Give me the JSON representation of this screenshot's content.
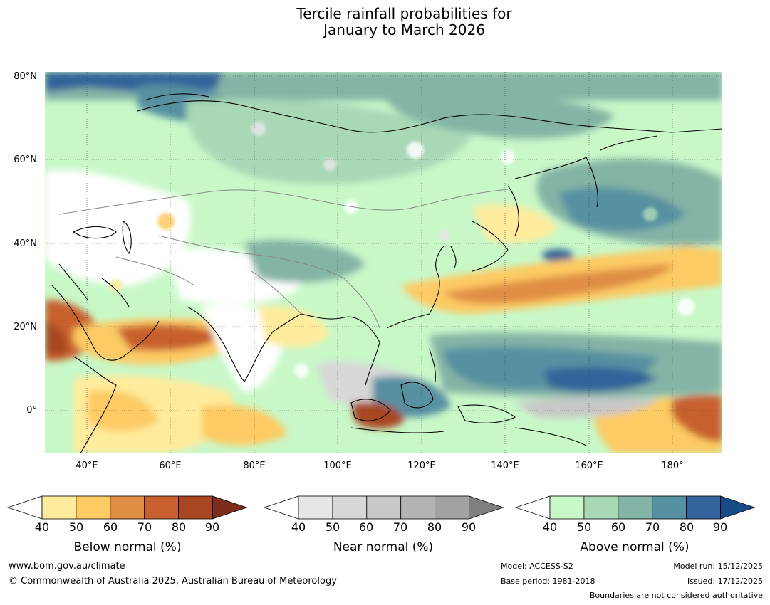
{
  "title": {
    "line1": "Tercile rainfall probabilities for",
    "line2": "January to March 2026"
  },
  "map": {
    "lat_labels": [
      "80°N",
      "60°N",
      "40°N",
      "20°N",
      "0°"
    ],
    "lon_labels": [
      "40°E",
      "60°E",
      "80°E",
      "100°E",
      "120°E",
      "140°E",
      "160°E",
      "180°"
    ]
  },
  "colorbars": [
    {
      "title": "Below normal (%)",
      "ticks": [
        "40",
        "50",
        "60",
        "70",
        "80",
        "90"
      ],
      "colors": [
        "#ffeb9c",
        "#fdca63",
        "#e08e44",
        "#c8612f",
        "#a84622",
        "#7f2d1a"
      ]
    },
    {
      "title": "Near normal (%)",
      "ticks": [
        "40",
        "50",
        "60",
        "70",
        "80",
        "90"
      ],
      "colors": [
        "#e6e6e6",
        "#d7d7d7",
        "#c8c8c8",
        "#b2b3b2",
        "#a2a2a2",
        "#7f7f7f"
      ]
    },
    {
      "title": "Above normal (%)",
      "ticks": [
        "40",
        "50",
        "60",
        "70",
        "80",
        "90"
      ],
      "colors": [
        "#c8f8c8",
        "#a8d8b6",
        "#84b4a6",
        "#5790a1",
        "#32639a",
        "#174b85"
      ]
    }
  ],
  "footer": {
    "website": "www.bom.gov.au/climate",
    "copyright": "© Commonwealth of Australia 2025, Australian Bureau of Meteorology",
    "model": "Model: ACCESS-S2",
    "base_period": "Base period: 1981-2018",
    "model_run": "Model run: 15/12/2025",
    "issued": "Issued: 17/12/2025",
    "disclaimer": "Boundaries are not considered authoritative"
  }
}
